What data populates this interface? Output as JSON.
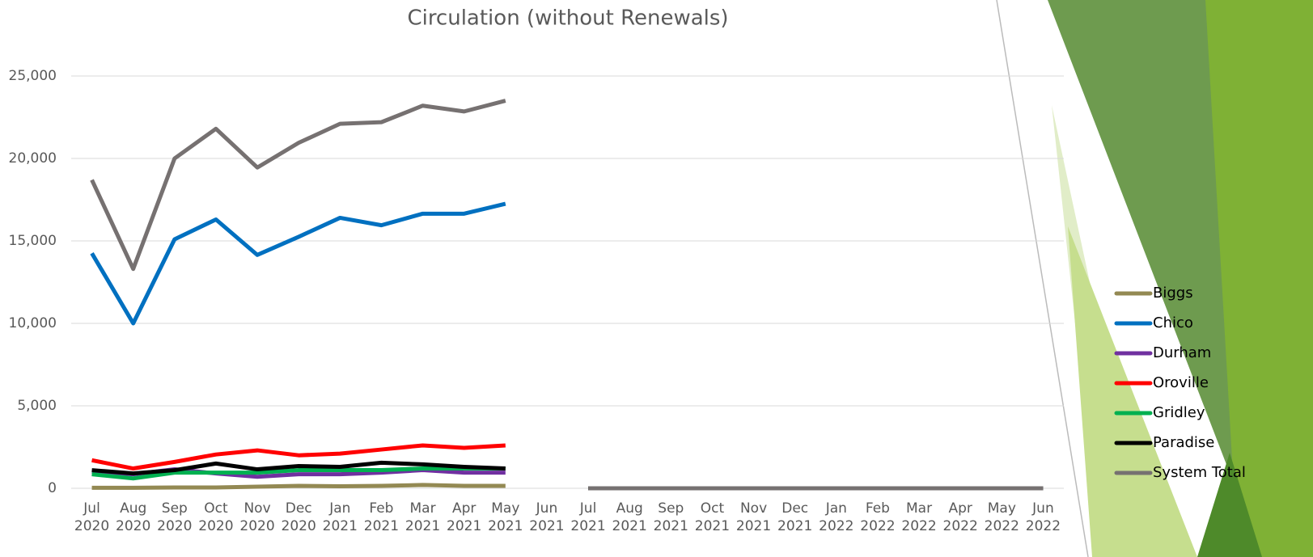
{
  "chart_data": {
    "type": "line",
    "title": "Circulation (without Renewals)",
    "categories": [
      "Jul 2020",
      "Aug 2020",
      "Sep 2020",
      "Oct 2020",
      "Nov 2020",
      "Dec 2020",
      "Jan 2021",
      "Feb 2021",
      "Mar 2021",
      "Apr 2021",
      "May 2021",
      "Jun 2021",
      "Jul 2021",
      "Aug 2021",
      "Sep 2021",
      "Oct 2021",
      "Nov 2021",
      "Dec 2021",
      "Jan 2022",
      "Feb 2022",
      "Mar 2022",
      "Apr 2022",
      "May 2022",
      "Jun 2022"
    ],
    "series": [
      {
        "name": "Biggs",
        "color": "#938953",
        "values": [
          30,
          30,
          50,
          50,
          100,
          150,
          120,
          150,
          200,
          150,
          150,
          null,
          0,
          0,
          0,
          0,
          0,
          0,
          0,
          0,
          0,
          0,
          0,
          0
        ]
      },
      {
        "name": "Chico",
        "color": "#0070c0",
        "values": [
          14250,
          10000,
          15100,
          16300,
          14150,
          15250,
          16400,
          15950,
          16650,
          16650,
          17250,
          null,
          0,
          0,
          0,
          0,
          0,
          0,
          0,
          0,
          0,
          0,
          0,
          0
        ]
      },
      {
        "name": "Durham",
        "color": "#7030a0",
        "values": [
          1000,
          850,
          1150,
          900,
          700,
          850,
          850,
          950,
          1100,
          950,
          950,
          null,
          0,
          0,
          0,
          0,
          0,
          0,
          0,
          0,
          0,
          0,
          0,
          0
        ]
      },
      {
        "name": "Oroville",
        "color": "#ff0000",
        "values": [
          1700,
          1200,
          1600,
          2050,
          2300,
          2000,
          2100,
          2350,
          2600,
          2450,
          2600,
          null,
          0,
          0,
          0,
          0,
          0,
          0,
          0,
          0,
          0,
          0,
          0,
          0
        ]
      },
      {
        "name": "Gridley",
        "color": "#00b050",
        "values": [
          850,
          600,
          950,
          950,
          950,
          1100,
          1100,
          1100,
          1200,
          1200,
          1200,
          null,
          0,
          0,
          0,
          0,
          0,
          0,
          0,
          0,
          0,
          0,
          0,
          0
        ]
      },
      {
        "name": "Paradise",
        "color": "#000000",
        "values": [
          1100,
          900,
          1100,
          1500,
          1150,
          1350,
          1300,
          1550,
          1450,
          1300,
          1200,
          null,
          0,
          0,
          0,
          0,
          0,
          0,
          0,
          0,
          0,
          0,
          0,
          0
        ]
      },
      {
        "name": "System Total",
        "color": "#767171",
        "values": [
          18700,
          13300,
          20000,
          21800,
          19450,
          20950,
          22100,
          22200,
          23200,
          22850,
          23500,
          null,
          0,
          0,
          0,
          0,
          0,
          0,
          0,
          0,
          0,
          0,
          0,
          0
        ]
      }
    ],
    "ylim": [
      0,
      25000
    ],
    "yticks": [
      0,
      {
        "value": 5000,
        "label": "5,000"
      },
      {
        "value": 10000,
        "label": "10,000"
      },
      {
        "value": 15000,
        "label": "15,000"
      },
      {
        "value": 20000,
        "label": "20,000"
      },
      {
        "value": 25000,
        "label": "25,000"
      }
    ],
    "grid": true,
    "legend": "right"
  }
}
